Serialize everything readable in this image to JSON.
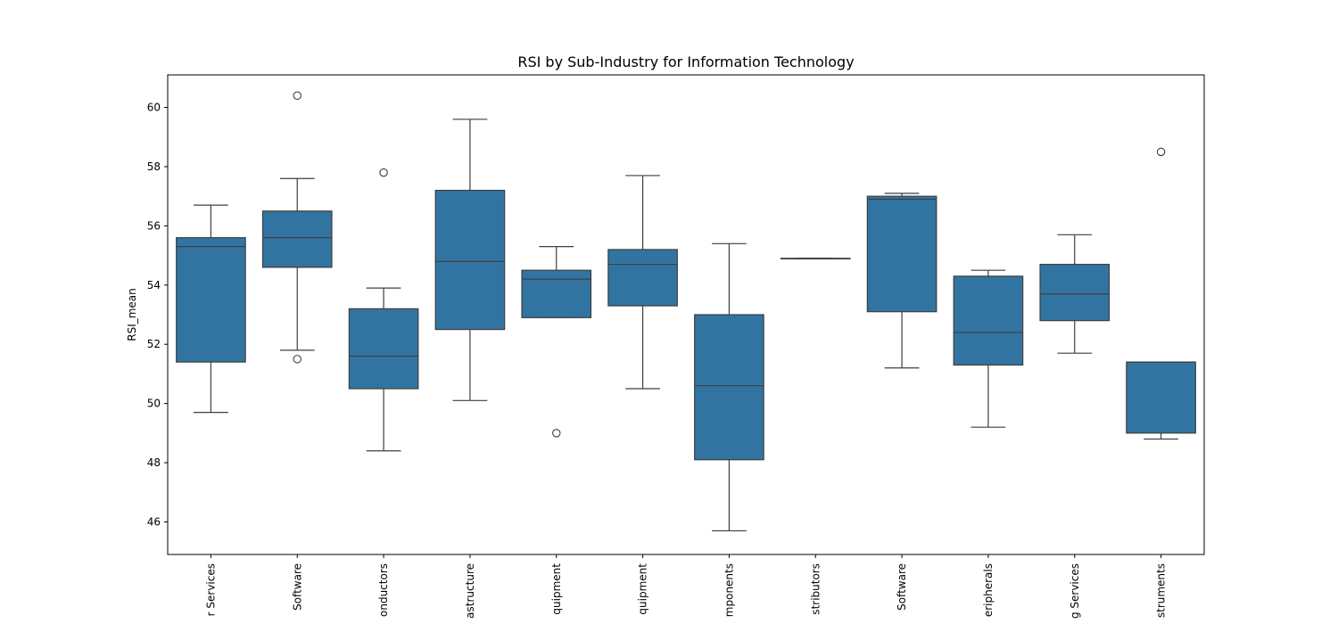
{
  "chart_data": {
    "type": "box",
    "title": "RSI by Sub-Industry for Information Technology",
    "xlabel": "",
    "ylabel": "RSI_mean",
    "ylim": [
      44.9,
      61.1
    ],
    "yticks": [
      46,
      48,
      50,
      52,
      54,
      56,
      58,
      60
    ],
    "categories": [
      "r Services",
      "Software",
      "onductors",
      "astructure",
      "quipment",
      "quipment",
      "mponents",
      "stributors",
      "Software",
      "eripherals",
      "g Services",
      "struments"
    ],
    "boxes": [
      {
        "whisker_low": 49.7,
        "q1": 51.4,
        "median": 55.3,
        "q3": 55.6,
        "whisker_high": 56.7,
        "outliers": []
      },
      {
        "whisker_low": 51.8,
        "q1": 54.6,
        "median": 55.6,
        "q3": 56.5,
        "whisker_high": 57.6,
        "outliers": [
          60.4,
          51.5
        ]
      },
      {
        "whisker_low": 48.4,
        "q1": 50.5,
        "median": 51.6,
        "q3": 53.2,
        "whisker_high": 53.9,
        "outliers": [
          57.8
        ]
      },
      {
        "whisker_low": 50.1,
        "q1": 52.5,
        "median": 54.8,
        "q3": 57.2,
        "whisker_high": 59.6,
        "outliers": []
      },
      {
        "whisker_low": 52.9,
        "q1": 52.9,
        "median": 54.2,
        "q3": 54.5,
        "whisker_high": 55.3,
        "outliers": [
          49.0
        ]
      },
      {
        "whisker_low": 50.5,
        "q1": 53.3,
        "median": 54.7,
        "q3": 55.2,
        "whisker_high": 57.7,
        "outliers": []
      },
      {
        "whisker_low": 45.7,
        "q1": 48.1,
        "median": 50.6,
        "q3": 53.0,
        "whisker_high": 55.4,
        "outliers": []
      },
      {
        "whisker_low": 54.9,
        "q1": 54.9,
        "median": 54.9,
        "q3": 54.9,
        "whisker_high": 54.9,
        "outliers": []
      },
      {
        "whisker_low": 51.2,
        "q1": 53.1,
        "median": 56.9,
        "q3": 57.0,
        "whisker_high": 57.1,
        "outliers": []
      },
      {
        "whisker_low": 49.2,
        "q1": 51.3,
        "median": 52.4,
        "q3": 54.3,
        "whisker_high": 54.5,
        "outliers": []
      },
      {
        "whisker_low": 51.7,
        "q1": 52.8,
        "median": 53.7,
        "q3": 54.7,
        "whisker_high": 55.7,
        "outliers": []
      },
      {
        "whisker_low": 48.8,
        "q1": 49.0,
        "median": 51.4,
        "q3": 51.4,
        "whisker_high": 51.4,
        "outliers": [
          58.5
        ]
      }
    ],
    "box_color": "#3274a1",
    "line_color": "#3f3f3f",
    "grid": false,
    "legend": "none"
  }
}
